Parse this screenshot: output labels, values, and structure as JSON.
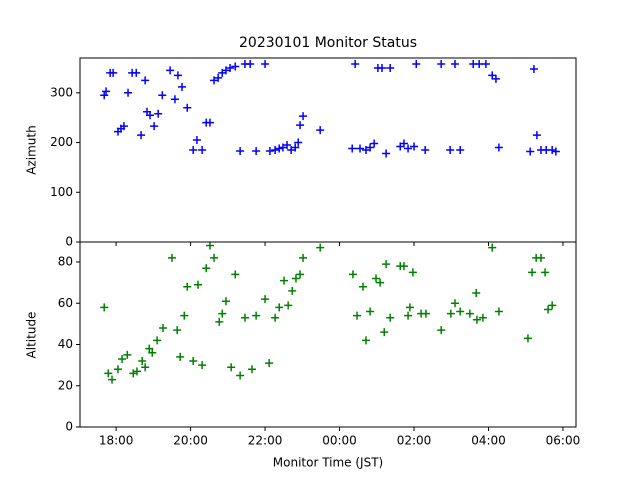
{
  "chart_data": [
    {
      "type": "scatter",
      "title": "20230101 Monitor Status",
      "ylabel": "Azimuth",
      "color": "#0000ff",
      "xlim": [
        17.03,
        30.35
      ],
      "xticks": [
        {
          "value": 18,
          "label": "18:00"
        },
        {
          "value": 20,
          "label": "20:00"
        },
        {
          "value": 22,
          "label": "22:00"
        },
        {
          "value": 24,
          "label": "00:00"
        },
        {
          "value": 26,
          "label": "02:00"
        },
        {
          "value": 28,
          "label": "04:00"
        },
        {
          "value": 30,
          "label": "06:00"
        }
      ],
      "ylim": [
        0,
        370
      ],
      "yticks": [
        0,
        100,
        200,
        300
      ],
      "x": [
        17.68,
        17.73,
        17.84,
        17.92,
        18.05,
        18.13,
        18.21,
        18.32,
        18.43,
        18.54,
        18.67,
        18.78,
        18.83,
        18.91,
        19.02,
        19.13,
        19.24,
        19.45,
        19.58,
        19.66,
        19.77,
        19.91,
        20.07,
        20.17,
        20.31,
        20.42,
        20.52,
        20.63,
        20.74,
        20.85,
        20.95,
        21.06,
        21.2,
        21.33,
        21.46,
        21.6,
        21.76,
        22.0,
        22.13,
        22.27,
        22.38,
        22.48,
        22.59,
        22.7,
        22.81,
        22.89,
        22.94,
        23.02,
        23.48,
        24.34,
        24.42,
        24.55,
        24.71,
        24.82,
        24.93,
        25.03,
        25.14,
        25.25,
        25.36,
        25.63,
        25.73,
        25.84,
        26.0,
        26.06,
        26.3,
        26.73,
        26.97,
        27.1,
        27.24,
        27.59,
        27.75,
        27.93,
        28.1,
        28.2,
        28.28,
        29.12,
        29.22,
        29.3,
        29.41,
        29.55,
        29.71,
        29.81
      ],
      "values": [
        295,
        303,
        340,
        340,
        222,
        228,
        233,
        300,
        340,
        340,
        215,
        325,
        262,
        255,
        233,
        258,
        295,
        345,
        287,
        335,
        312,
        270,
        185,
        205,
        185,
        240,
        240,
        325,
        330,
        340,
        345,
        350,
        353,
        183,
        358,
        358,
        183,
        358,
        183,
        185,
        188,
        190,
        195,
        185,
        190,
        200,
        235,
        253,
        225,
        188,
        358,
        188,
        185,
        190,
        198,
        350,
        350,
        178,
        350,
        192,
        198,
        188,
        192,
        358,
        185,
        358,
        185,
        358,
        185,
        358,
        358,
        358,
        335,
        328,
        190,
        182,
        348,
        215,
        185,
        185,
        185,
        182
      ]
    },
    {
      "type": "scatter",
      "ylabel": "Altitude",
      "xlabel": "Monitor Time (JST)",
      "color": "#008000",
      "xlim": [
        17.03,
        30.35
      ],
      "xticks": [
        {
          "value": 18,
          "label": "18:00"
        },
        {
          "value": 20,
          "label": "20:00"
        },
        {
          "value": 22,
          "label": "22:00"
        },
        {
          "value": 24,
          "label": "00:00"
        },
        {
          "value": 26,
          "label": "02:00"
        },
        {
          "value": 28,
          "label": "04:00"
        },
        {
          "value": 30,
          "label": "06:00"
        }
      ],
      "ylim": [
        0,
        89.7
      ],
      "yticks": [
        0,
        20,
        40,
        60,
        80
      ],
      "x": [
        17.68,
        17.79,
        17.89,
        18.05,
        18.16,
        18.3,
        18.46,
        18.56,
        18.7,
        18.78,
        18.89,
        18.97,
        19.1,
        19.26,
        19.5,
        19.64,
        19.72,
        19.83,
        19.91,
        20.07,
        20.2,
        20.31,
        20.42,
        20.52,
        20.63,
        20.77,
        20.85,
        20.95,
        21.09,
        21.2,
        21.33,
        21.46,
        21.65,
        21.76,
        22.0,
        22.11,
        22.27,
        22.38,
        22.51,
        22.62,
        22.73,
        22.83,
        22.94,
        23.02,
        23.48,
        24.36,
        24.47,
        24.63,
        24.71,
        24.82,
        24.98,
        25.09,
        25.2,
        25.25,
        25.36,
        25.63,
        25.73,
        25.84,
        25.89,
        25.97,
        26.19,
        26.32,
        26.73,
        26.99,
        27.1,
        27.24,
        27.5,
        27.67,
        27.69,
        27.85,
        28.1,
        28.28,
        29.06,
        29.17,
        29.28,
        29.41,
        29.52,
        29.6,
        29.71
      ],
      "values": [
        58,
        26,
        23,
        28,
        33,
        35,
        26,
        27,
        32,
        29,
        38,
        36,
        42,
        48,
        82,
        47,
        34,
        54,
        68,
        32,
        69,
        30,
        77,
        88,
        82,
        51,
        55,
        61,
        29,
        74,
        25,
        53,
        28,
        54,
        62,
        31,
        53,
        58,
        71,
        59,
        66,
        72,
        74,
        82,
        87,
        74,
        54,
        68,
        42,
        56,
        72,
        70,
        46,
        79,
        53,
        78,
        78,
        54,
        58,
        75,
        55,
        55,
        47,
        55,
        60,
        56,
        55,
        65,
        52,
        53,
        87,
        56,
        43,
        75,
        82,
        82,
        75,
        57,
        59
      ]
    }
  ]
}
